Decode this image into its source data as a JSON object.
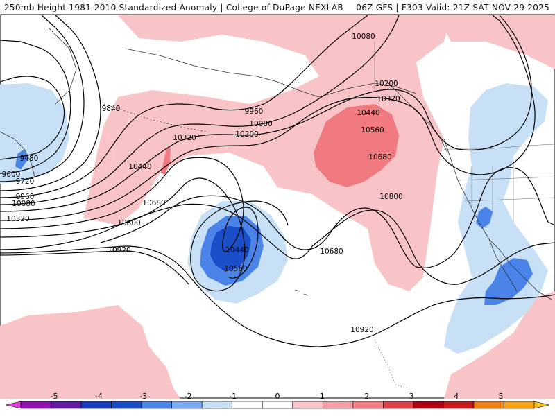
{
  "header": {
    "left_title": "250mb Height 1981-2010 Standardized Anomaly | College of DuPage NEXLAB",
    "right_title": "06Z GFS | F303 Valid: 21Z SAT NOV 29 2025"
  },
  "colors": {
    "pos1": "#f9c4c8",
    "pos2": "#f07a7f",
    "neg1": "#c7e0f6",
    "neg2": "#4a84e8",
    "neg3": "#1a4ec8",
    "contour": "#000000",
    "coast": "#333333"
  },
  "height_labels": [
    {
      "text": "10080"
    },
    {
      "text": "10200"
    },
    {
      "text": "10320"
    },
    {
      "text": "10440"
    },
    {
      "text": "10560"
    },
    {
      "text": "10680"
    },
    {
      "text": "9960"
    },
    {
      "text": "10080"
    },
    {
      "text": "10200"
    },
    {
      "text": "9840"
    },
    {
      "text": "10320"
    },
    {
      "text": "10440"
    },
    {
      "text": "10680"
    },
    {
      "text": "10800"
    },
    {
      "text": "10920"
    },
    {
      "text": "9480"
    },
    {
      "text": "9600"
    },
    {
      "text": "9720"
    },
    {
      "text": "9960"
    },
    {
      "text": "10080"
    },
    {
      "text": "10320"
    },
    {
      "text": "10440"
    },
    {
      "text": "10560"
    },
    {
      "text": "10680"
    },
    {
      "text": "10800"
    },
    {
      "text": "10920"
    }
  ],
  "colorbar": {
    "ticks": [
      "-5",
      "-4",
      "-3",
      "-2",
      "-1",
      "0",
      "1",
      "2",
      "3",
      "4",
      "5"
    ],
    "colors": [
      "#e040d8",
      "#9010b0",
      "#6018a0",
      "#1a3ec0",
      "#1a4ec8",
      "#4a84e8",
      "#7aaaf0",
      "#c7e0f6",
      "#ffffff",
      "#ffffff",
      "#f9c4c8",
      "#f4a0a6",
      "#f07a7f",
      "#e04048",
      "#b00010",
      "#c81818",
      "#f08010",
      "#f5a010",
      "#f8c020"
    ]
  }
}
